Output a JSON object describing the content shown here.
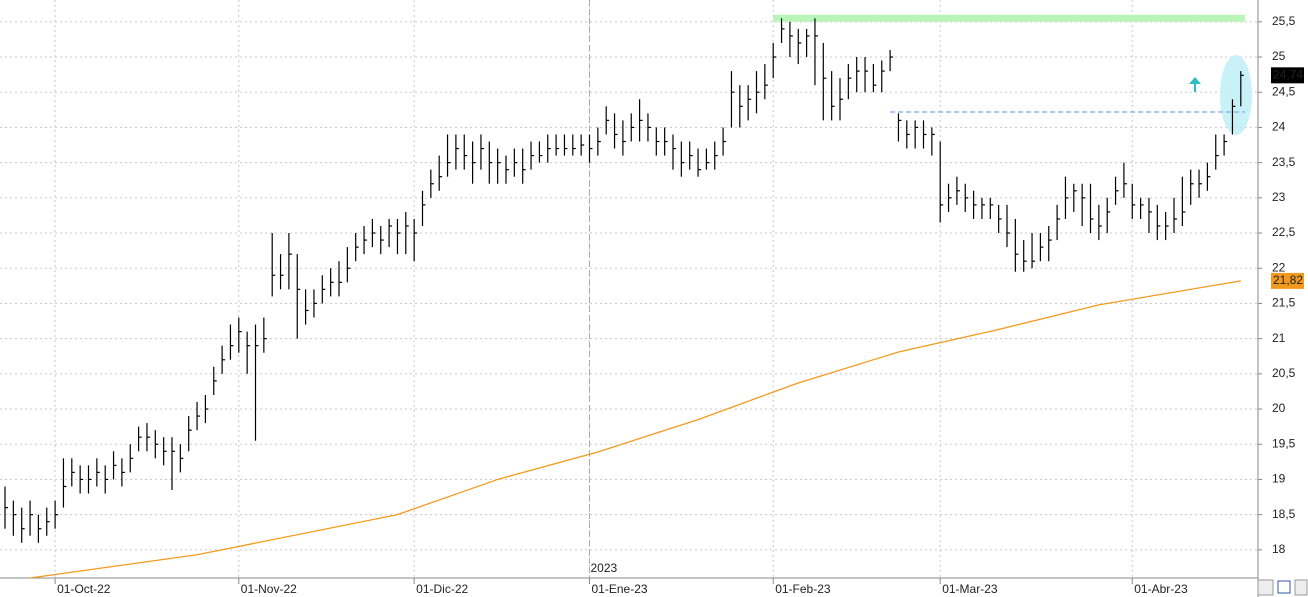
{
  "chart_data": {
    "type": "hlc",
    "year_label": "2023",
    "categories": [
      null,
      null,
      null,
      null,
      null,
      null,
      "01-Oct-22",
      null,
      null,
      null,
      null,
      null,
      null,
      null,
      null,
      null,
      null,
      null,
      null,
      null,
      null,
      null,
      null,
      null,
      null,
      null,
      null,
      null,
      "01-Nov-22",
      null,
      null,
      null,
      null,
      null,
      null,
      null,
      null,
      null,
      null,
      null,
      null,
      null,
      null,
      null,
      null,
      null,
      null,
      null,
      null,
      "01-Dic-22",
      null,
      null,
      null,
      null,
      null,
      null,
      null,
      null,
      null,
      null,
      null,
      null,
      null,
      null,
      null,
      null,
      null,
      null,
      null,
      null,
      "01-Ene-23",
      null,
      null,
      null,
      null,
      null,
      null,
      null,
      null,
      null,
      null,
      null,
      null,
      null,
      null,
      null,
      null,
      null,
      null,
      null,
      null,
      null,
      "01-Feb-23",
      null,
      null,
      null,
      null,
      null,
      null,
      null,
      null,
      null,
      null,
      null,
      null,
      null,
      null,
      null,
      null,
      null,
      null,
      null,
      "01-Mar-23",
      null,
      null,
      null,
      null,
      null,
      null,
      null,
      null,
      null,
      null,
      null,
      null,
      null,
      null,
      null,
      null,
      null,
      null,
      null,
      null,
      null,
      null,
      "01-Abr-23",
      null,
      null,
      null,
      null,
      null,
      null,
      null,
      null,
      null,
      null,
      null,
      null,
      null
    ],
    "high": [
      18.9,
      18.7,
      18.6,
      18.7,
      18.5,
      18.6,
      18.7,
      19.3,
      19.3,
      19.2,
      19.2,
      19.3,
      19.2,
      19.4,
      19.3,
      19.5,
      19.75,
      19.8,
      19.7,
      19.6,
      19.6,
      19.5,
      19.9,
      20.1,
      20.2,
      20.6,
      20.9,
      21.2,
      21.3,
      21.1,
      21.2,
      21.3,
      22.5,
      22.2,
      22.5,
      22.2,
      21.7,
      21.7,
      21.9,
      22.0,
      22.1,
      22.3,
      22.5,
      22.6,
      22.7,
      22.6,
      22.7,
      22.7,
      22.8,
      22.7,
      23.1,
      23.4,
      23.6,
      23.9,
      23.9,
      23.9,
      23.8,
      23.9,
      23.8,
      23.7,
      23.6,
      23.7,
      23.7,
      23.8,
      23.8,
      23.9,
      23.9,
      23.9,
      23.9,
      23.9,
      23.9,
      24.0,
      24.3,
      24.2,
      24.1,
      24.2,
      24.4,
      24.2,
      24.0,
      24.0,
      23.9,
      23.8,
      23.8,
      23.7,
      23.7,
      23.8,
      24.0,
      24.8,
      24.6,
      24.6,
      24.8,
      24.9,
      25.2,
      25.55,
      25.5,
      25.4,
      25.4,
      25.55,
      25.2,
      24.8,
      24.7,
      24.9,
      25.0,
      25.0,
      24.9,
      24.95,
      25.1,
      24.2,
      24.1,
      24.1,
      24.1,
      24.0,
      23.8,
      23.2,
      23.3,
      23.2,
      23.1,
      23.0,
      23.0,
      22.9,
      22.9,
      22.7,
      22.4,
      22.5,
      22.5,
      22.6,
      22.9,
      23.3,
      23.2,
      23.2,
      23.2,
      22.9,
      23.0,
      23.3,
      23.5,
      23.2,
      23.0,
      23.0,
      22.9,
      22.8,
      23.0,
      23.3,
      23.4,
      23.4,
      23.5,
      23.9,
      23.9,
      24.4,
      24.8
    ],
    "low": [
      18.3,
      18.2,
      18.1,
      18.2,
      18.1,
      18.2,
      18.3,
      18.6,
      18.9,
      18.8,
      18.8,
      18.9,
      18.8,
      19.0,
      18.9,
      19.1,
      19.4,
      19.4,
      19.3,
      19.2,
      18.85,
      19.1,
      19.4,
      19.7,
      19.8,
      20.2,
      20.5,
      20.7,
      20.8,
      20.5,
      19.55,
      20.8,
      21.6,
      21.7,
      21.7,
      21.0,
      21.2,
      21.3,
      21.5,
      21.6,
      21.6,
      21.8,
      22.1,
      22.2,
      22.3,
      22.2,
      22.3,
      22.2,
      22.2,
      22.1,
      22.6,
      23.0,
      23.1,
      23.3,
      23.4,
      23.4,
      23.2,
      23.4,
      23.2,
      23.2,
      23.2,
      23.3,
      23.2,
      23.4,
      23.5,
      23.5,
      23.6,
      23.6,
      23.6,
      23.6,
      23.5,
      23.6,
      23.9,
      23.7,
      23.6,
      23.8,
      23.8,
      23.8,
      23.6,
      23.6,
      23.4,
      23.3,
      23.4,
      23.3,
      23.4,
      23.4,
      23.6,
      24.0,
      24.0,
      24.1,
      24.2,
      24.4,
      24.7,
      25.2,
      25.0,
      24.9,
      25.0,
      24.6,
      24.1,
      24.1,
      24.1,
      24.4,
      24.5,
      24.5,
      24.5,
      24.5,
      24.8,
      23.8,
      23.7,
      23.7,
      23.7,
      23.6,
      22.65,
      22.8,
      22.9,
      22.8,
      22.7,
      22.7,
      22.7,
      22.5,
      22.3,
      21.95,
      21.95,
      22.0,
      22.1,
      22.1,
      22.4,
      22.7,
      22.8,
      22.6,
      22.5,
      22.4,
      22.5,
      22.9,
      23.0,
      22.7,
      22.7,
      22.5,
      22.4,
      22.4,
      22.5,
      22.6,
      22.9,
      23.0,
      23.1,
      23.4,
      23.6,
      23.9,
      24.3
    ],
    "close": [
      18.6,
      18.5,
      18.3,
      18.5,
      18.3,
      18.4,
      18.5,
      18.9,
      19.1,
      19.0,
      19.0,
      19.1,
      19.0,
      19.2,
      19.1,
      19.3,
      19.6,
      19.6,
      19.5,
      19.4,
      19.4,
      19.3,
      19.7,
      19.9,
      20.0,
      20.4,
      20.7,
      20.9,
      21.1,
      20.9,
      20.9,
      21.0,
      21.9,
      21.9,
      22.2,
      21.7,
      21.4,
      21.5,
      21.7,
      21.8,
      21.8,
      22.0,
      22.3,
      22.4,
      22.5,
      22.4,
      22.6,
      22.5,
      22.6,
      22.5,
      22.9,
      23.2,
      23.3,
      23.5,
      23.7,
      23.6,
      23.5,
      23.7,
      23.5,
      23.5,
      23.4,
      23.5,
      23.4,
      23.6,
      23.6,
      23.7,
      23.7,
      23.7,
      23.7,
      23.75,
      23.7,
      23.8,
      24.1,
      23.9,
      23.8,
      24.0,
      24.1,
      24.0,
      23.8,
      23.8,
      23.7,
      23.5,
      23.6,
      23.4,
      23.5,
      23.6,
      23.8,
      24.5,
      24.3,
      24.4,
      24.5,
      24.6,
      25.0,
      25.4,
      25.3,
      25.2,
      25.3,
      25.3,
      24.7,
      24.3,
      24.4,
      24.7,
      24.8,
      24.8,
      24.6,
      24.8,
      25.0,
      24.1,
      23.9,
      24.0,
      23.9,
      23.9,
      22.9,
      23.0,
      23.1,
      23.0,
      22.9,
      22.9,
      22.9,
      22.7,
      22.5,
      22.2,
      22.1,
      22.1,
      22.3,
      22.4,
      22.7,
      23.0,
      23.1,
      23.0,
      22.7,
      22.6,
      22.8,
      23.1,
      23.2,
      22.9,
      22.9,
      22.8,
      22.6,
      22.6,
      22.7,
      22.8,
      23.2,
      23.2,
      23.3,
      23.6,
      23.8,
      24.3,
      24.74
    ],
    "color": "#000000",
    "last_label": "24,74",
    "moving_average": {
      "color": "#f39a1e",
      "x": [
        3,
        23,
        47,
        59,
        71,
        83,
        95,
        107,
        119,
        131,
        148
      ],
      "values": [
        17.6,
        17.93,
        18.5,
        19.0,
        19.39,
        19.85,
        20.37,
        20.81,
        21.13,
        21.48,
        21.82
      ],
      "value_label": "21,82"
    },
    "resistance": {
      "value": 25.55,
      "from": 92,
      "color": "#b9f5b9"
    },
    "support": {
      "value": 24.22,
      "from": 106,
      "color": "#8fb6e8"
    },
    "ylim": [
      17.6,
      25.81
    ],
    "yticks": [
      18,
      {
        "value": 18.5,
        "label": "18,5"
      },
      19,
      {
        "value": 19.5,
        "label": "19,5"
      },
      20,
      {
        "value": 20.5,
        "label": "20,5"
      },
      21,
      {
        "value": 21.5,
        "label": "21,5"
      },
      22,
      {
        "value": 22.5,
        "label": "22,5"
      },
      23,
      {
        "value": 23.5,
        "label": "23,5"
      },
      24,
      {
        "value": 24.5,
        "label": "24,5"
      },
      25,
      {
        "value": 25.5,
        "label": "25,5"
      }
    ],
    "grid": true
  }
}
